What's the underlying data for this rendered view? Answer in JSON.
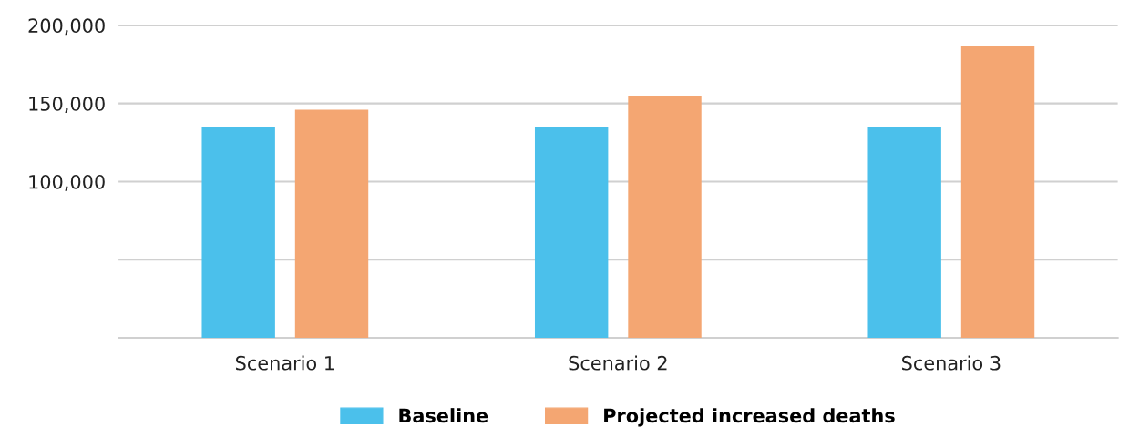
{
  "chart_data": {
    "type": "bar",
    "categories": [
      "Scenario 1",
      "Scenario 2",
      "Scenario 3"
    ],
    "series": [
      {
        "name": "Baseline",
        "color": "#4bc0eb",
        "values": [
          135000,
          135000,
          135000
        ]
      },
      {
        "name": "Projected increased deaths",
        "color": "#f4a672",
        "values": [
          146000,
          155000,
          187000
        ]
      }
    ],
    "ylim": [
      0,
      200000
    ],
    "yticks": [
      {
        "value": 0,
        "label": null
      },
      {
        "value": 50000,
        "label": null
      },
      {
        "value": 100000,
        "label": "100,000"
      },
      {
        "value": 150000,
        "label": "150,000"
      },
      {
        "value": 200000,
        "label": "200,000"
      }
    ],
    "grid": "y",
    "legend": "bottom"
  }
}
